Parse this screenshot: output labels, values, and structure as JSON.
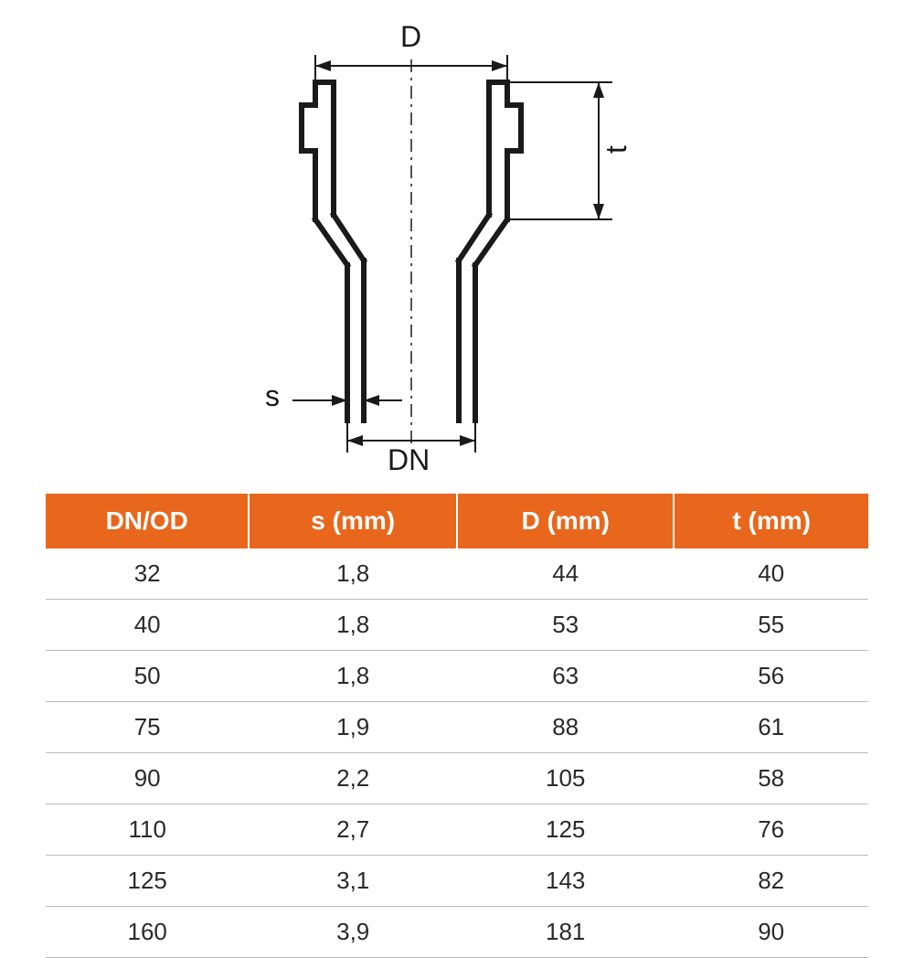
{
  "diagram": {
    "labels": {
      "D": "D",
      "t": "t",
      "s": "s",
      "DN": "DN"
    },
    "colors": {
      "stroke": "#1a1a1a",
      "label": "#1a1a1a",
      "background": "#ffffff"
    },
    "stroke_width_outline": 6,
    "stroke_width_dim": 2,
    "geometry_note": "cross-section of pipe socket: top socket OD=D, depth=t; lower pipe OD=DN with wall thickness s; vertical centerline dashed"
  },
  "table": {
    "header_bg": "#e8671c",
    "header_fg": "#ffffff",
    "row_border": "#bbbbbb",
    "cell_fg": "#2a2a2a",
    "font_size_header": 28,
    "font_size_cell": 26,
    "columns": [
      "DN/OD",
      "s (mm)",
      "D (mm)",
      "t (mm)"
    ],
    "rows": [
      [
        "32",
        "1,8",
        "44",
        "40"
      ],
      [
        "40",
        "1,8",
        "53",
        "55"
      ],
      [
        "50",
        "1,8",
        "63",
        "56"
      ],
      [
        "75",
        "1,9",
        "88",
        "61"
      ],
      [
        "90",
        "2,2",
        "105",
        "58"
      ],
      [
        "110",
        "2,7",
        "125",
        "76"
      ],
      [
        "125",
        "3,1",
        "143",
        "82"
      ],
      [
        "160",
        "3,9",
        "181",
        "90"
      ]
    ]
  }
}
